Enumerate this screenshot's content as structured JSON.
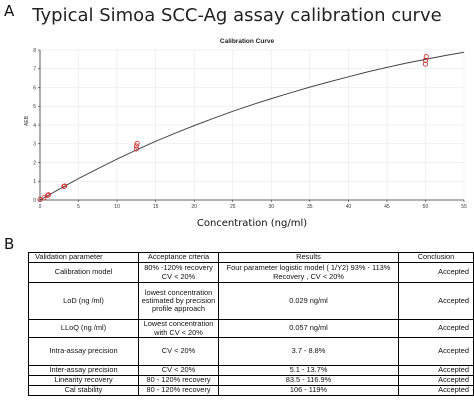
{
  "panel_labels": {
    "a": "A",
    "b": "B"
  },
  "figure_title": "Typical Simoa SCC-Ag assay  calibration curve",
  "chart_data": {
    "type": "scatter",
    "title": "Calibration Curve",
    "xlabel": "Concentration (ng/ml)",
    "ylabel": "AEB",
    "xlim": [
      0,
      55
    ],
    "ylim": [
      0,
      8
    ],
    "x_ticks": [
      0,
      5,
      10,
      15,
      20,
      25,
      30,
      35,
      40,
      45,
      50,
      55
    ],
    "x_tick_labels": [
      "0",
      "5",
      "10",
      "15",
      "20",
      "25",
      "30",
      "35",
      "40",
      "45",
      "50",
      "55"
    ],
    "y_ticks": [
      0,
      1,
      2,
      3,
      4,
      5,
      6,
      7,
      8
    ],
    "y_tick_labels": [
      "0",
      "1",
      "2",
      "3",
      "4",
      "5",
      "6",
      "7",
      "8"
    ],
    "grid": true,
    "curve_color": "#444444",
    "point_color": "#cc2222",
    "points": [
      {
        "x": 0,
        "y": 0.02
      },
      {
        "x": 0.5,
        "y": 0.12
      },
      {
        "x": 1.0,
        "y": 0.25
      },
      {
        "x": 1.1,
        "y": 0.28
      },
      {
        "x": 3.1,
        "y": 0.72
      },
      {
        "x": 3.2,
        "y": 0.75
      },
      {
        "x": 12.5,
        "y": 2.72
      },
      {
        "x": 12.5,
        "y": 2.88
      },
      {
        "x": 12.6,
        "y": 3.02
      },
      {
        "x": 50,
        "y": 7.25
      },
      {
        "x": 50,
        "y": 7.45
      },
      {
        "x": 50.1,
        "y": 7.65
      }
    ],
    "curve": [
      {
        "x": 0,
        "y": 0
      },
      {
        "x": 2.5,
        "y": 0.58
      },
      {
        "x": 5,
        "y": 1.14
      },
      {
        "x": 7.5,
        "y": 1.67
      },
      {
        "x": 10,
        "y": 2.18
      },
      {
        "x": 12.5,
        "y": 2.67
      },
      {
        "x": 15,
        "y": 3.13
      },
      {
        "x": 17.5,
        "y": 3.56
      },
      {
        "x": 20,
        "y": 3.97
      },
      {
        "x": 22.5,
        "y": 4.36
      },
      {
        "x": 25,
        "y": 4.73
      },
      {
        "x": 27.5,
        "y": 5.08
      },
      {
        "x": 30,
        "y": 5.41
      },
      {
        "x": 32.5,
        "y": 5.72
      },
      {
        "x": 35,
        "y": 6.02
      },
      {
        "x": 37.5,
        "y": 6.3
      },
      {
        "x": 40,
        "y": 6.57
      },
      {
        "x": 42.5,
        "y": 6.83
      },
      {
        "x": 45,
        "y": 7.07
      },
      {
        "x": 47.5,
        "y": 7.3
      },
      {
        "x": 50,
        "y": 7.5
      },
      {
        "x": 52.5,
        "y": 7.7
      },
      {
        "x": 55,
        "y": 7.88
      }
    ]
  },
  "table": {
    "headers": [
      "Validation parameter",
      "Acceptance crteria",
      "Results",
      "Conclusion"
    ],
    "rows": [
      {
        "param": "Calibration model",
        "criteria": "80% -120% recovery CV < 20%",
        "result": "Four parameter logistic model ( 1/Y2)     93% - 113% Recovery , CV < 20%",
        "conclusion": "Accepted"
      },
      {
        "param": "LoD (ng /ml)",
        "criteria": "lowest concentration estimated by precision profile approach",
        "result": "0.029 ng/ml",
        "conclusion": "Accepted"
      },
      {
        "param": "LLoQ (ng /ml)",
        "criteria": "Lowest concentration with CV < 20%",
        "result": "0.057 ng/ml",
        "conclusion": "Accepted"
      },
      {
        "param": "Intra-assay precision",
        "criteria": "CV < 20%",
        "result": "3.7 - 8.8%",
        "conclusion": "Accepted"
      },
      {
        "param": "Inter-assay precision",
        "criteria": "CV < 20%",
        "result": "5.1 - 13.7%",
        "conclusion": "Accepted"
      },
      {
        "param": "Linearity recovery",
        "criteria": "80 - 120% recovery",
        "result": "83.5 - 116.9%",
        "conclusion": "Accepted"
      },
      {
        "param": "Cal stability",
        "criteria": "80 - 120% recovery",
        "result": "106 - 119%",
        "conclusion": "Accepted"
      }
    ]
  }
}
